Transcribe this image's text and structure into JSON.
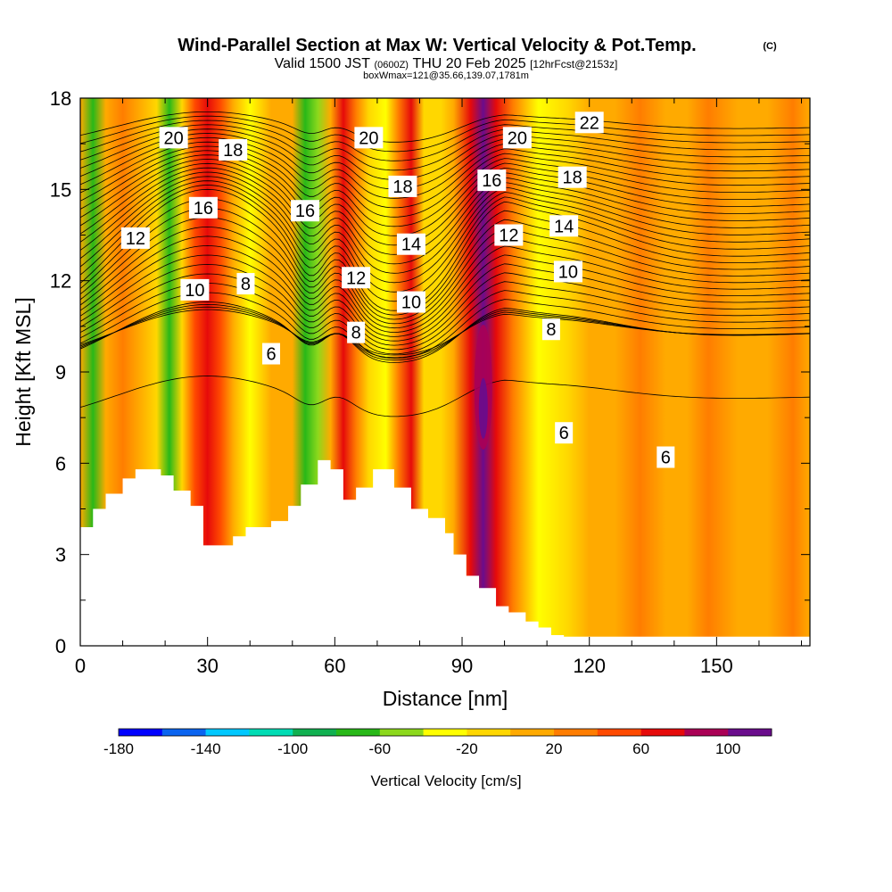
{
  "chart_data": {
    "type": "heatmap",
    "title": "Wind-Parallel Section at Max W: Vertical Velocity & Pot.Temp.",
    "title_mark": "(C)",
    "subtitle": {
      "valid": "Valid 1500 JST",
      "utc": "(0600Z)",
      "date": "THU 20 Feb 2025",
      "forecast": "[12hrFcst@2153z]"
    },
    "box_info": "boxWmax=121@35.66,139.07,1781m",
    "xlabel": "Distance [nm]",
    "ylabel": "Height [Kft MSL]",
    "xlim": [
      0,
      172
    ],
    "ylim": [
      0,
      18
    ],
    "x_ticks": [
      0,
      30,
      60,
      90,
      120,
      150
    ],
    "y_ticks": [
      0,
      3,
      6,
      9,
      12,
      15,
      18
    ],
    "colorbar": {
      "label": "Vertical Velocity [cm/s]",
      "bounds": [
        -180,
        120
      ],
      "tick_labels": [
        "-180",
        "-140",
        "-100",
        "-60",
        "-20",
        "20",
        "60",
        "100"
      ],
      "tick_values": [
        -180,
        -140,
        -100,
        -60,
        -20,
        20,
        60,
        100
      ],
      "colors": [
        "#0000ff",
        "#0a64f0",
        "#00c8ff",
        "#00dcb4",
        "#10b050",
        "#28b818",
        "#8cd81c",
        "#ffff00",
        "#ffd700",
        "#ffaa00",
        "#ff7d00",
        "#ff4a00",
        "#e60a0a",
        "#aa0055",
        "#6a0c8c"
      ]
    },
    "w_series": [
      {
        "x": 0,
        "w": 10
      },
      {
        "x": 3,
        "w": -70
      },
      {
        "x": 6,
        "w": 10
      },
      {
        "x": 10,
        "w": 30
      },
      {
        "x": 14,
        "w": 10
      },
      {
        "x": 18,
        "w": -10
      },
      {
        "x": 21,
        "w": -75
      },
      {
        "x": 24,
        "w": -20
      },
      {
        "x": 27,
        "w": 40
      },
      {
        "x": 30,
        "w": 70
      },
      {
        "x": 33,
        "w": 55
      },
      {
        "x": 36,
        "w": 10
      },
      {
        "x": 40,
        "w": -25
      },
      {
        "x": 45,
        "w": 10
      },
      {
        "x": 50,
        "w": 10
      },
      {
        "x": 53,
        "w": -80
      },
      {
        "x": 56,
        "w": -50
      },
      {
        "x": 59,
        "w": 10
      },
      {
        "x": 62,
        "w": 75
      },
      {
        "x": 65,
        "w": 30
      },
      {
        "x": 68,
        "w": -10
      },
      {
        "x": 72,
        "w": -40
      },
      {
        "x": 75,
        "w": 30
      },
      {
        "x": 78,
        "w": 60
      },
      {
        "x": 81,
        "w": -10
      },
      {
        "x": 85,
        "w": -20
      },
      {
        "x": 88,
        "w": 10
      },
      {
        "x": 92,
        "w": 60
      },
      {
        "x": 95,
        "w": 121
      },
      {
        "x": 98,
        "w": 70
      },
      {
        "x": 102,
        "w": 20
      },
      {
        "x": 108,
        "w": -25
      },
      {
        "x": 115,
        "w": -10
      },
      {
        "x": 120,
        "w": 10
      },
      {
        "x": 126,
        "w": 5
      },
      {
        "x": 132,
        "w": 25
      },
      {
        "x": 138,
        "w": 5
      },
      {
        "x": 143,
        "w": 10
      },
      {
        "x": 148,
        "w": 30
      },
      {
        "x": 155,
        "w": 5
      },
      {
        "x": 162,
        "w": 10
      },
      {
        "x": 168,
        "w": 30
      },
      {
        "x": 172,
        "w": 15
      }
    ],
    "terrain": [
      {
        "x": 0,
        "h": 3.9
      },
      {
        "x": 3,
        "h": 4.5
      },
      {
        "x": 6,
        "h": 5.0
      },
      {
        "x": 10,
        "h": 5.5
      },
      {
        "x": 13,
        "h": 5.8
      },
      {
        "x": 19,
        "h": 5.6
      },
      {
        "x": 22,
        "h": 5.1
      },
      {
        "x": 26,
        "h": 4.6
      },
      {
        "x": 29,
        "h": 3.3
      },
      {
        "x": 33,
        "h": 3.3
      },
      {
        "x": 36,
        "h": 3.6
      },
      {
        "x": 39,
        "h": 3.9
      },
      {
        "x": 45,
        "h": 4.1
      },
      {
        "x": 49,
        "h": 4.6
      },
      {
        "x": 52,
        "h": 5.3
      },
      {
        "x": 56,
        "h": 6.1
      },
      {
        "x": 59,
        "h": 5.8
      },
      {
        "x": 62,
        "h": 4.8
      },
      {
        "x": 65,
        "h": 5.2
      },
      {
        "x": 69,
        "h": 5.8
      },
      {
        "x": 74,
        "h": 5.2
      },
      {
        "x": 78,
        "h": 4.5
      },
      {
        "x": 82,
        "h": 4.2
      },
      {
        "x": 86,
        "h": 3.7
      },
      {
        "x": 88,
        "h": 3.0
      },
      {
        "x": 91,
        "h": 2.3
      },
      {
        "x": 94,
        "h": 1.9
      },
      {
        "x": 98,
        "h": 1.3
      },
      {
        "x": 101,
        "h": 1.1
      },
      {
        "x": 105,
        "h": 0.8
      },
      {
        "x": 108,
        "h": 0.6
      },
      {
        "x": 111,
        "h": 0.35
      },
      {
        "x": 114,
        "h": 0.3
      },
      {
        "x": 172,
        "h": 0.3
      }
    ],
    "theta_contours": {
      "levels": [
        6,
        8,
        10,
        12,
        14,
        16,
        18,
        20,
        22
      ],
      "labels": [
        {
          "text": "20",
          "x": 22,
          "y": 16.7
        },
        {
          "text": "18",
          "x": 36,
          "y": 16.3
        },
        {
          "text": "16",
          "x": 29,
          "y": 14.4
        },
        {
          "text": "12",
          "x": 13,
          "y": 13.4
        },
        {
          "text": "10",
          "x": 27,
          "y": 11.7
        },
        {
          "text": "8",
          "x": 39,
          "y": 11.9
        },
        {
          "text": "6",
          "x": 45,
          "y": 9.6
        },
        {
          "text": "16",
          "x": 53,
          "y": 14.3
        },
        {
          "text": "20",
          "x": 68,
          "y": 16.7
        },
        {
          "text": "18",
          "x": 76,
          "y": 15.1
        },
        {
          "text": "12",
          "x": 65,
          "y": 12.1
        },
        {
          "text": "14",
          "x": 78,
          "y": 13.2
        },
        {
          "text": "10",
          "x": 78,
          "y": 11.3
        },
        {
          "text": "8",
          "x": 65,
          "y": 10.3
        },
        {
          "text": "20",
          "x": 103,
          "y": 16.7
        },
        {
          "text": "22",
          "x": 120,
          "y": 17.2
        },
        {
          "text": "16",
          "x": 97,
          "y": 15.3
        },
        {
          "text": "18",
          "x": 116,
          "y": 15.4
        },
        {
          "text": "12",
          "x": 101,
          "y": 13.5
        },
        {
          "text": "14",
          "x": 114,
          "y": 13.8
        },
        {
          "text": "10",
          "x": 115,
          "y": 12.3
        },
        {
          "text": "8",
          "x": 111,
          "y": 10.4
        },
        {
          "text": "6",
          "x": 114,
          "y": 7.0
        },
        {
          "text": "6",
          "x": 138,
          "y": 6.2
        }
      ]
    }
  }
}
